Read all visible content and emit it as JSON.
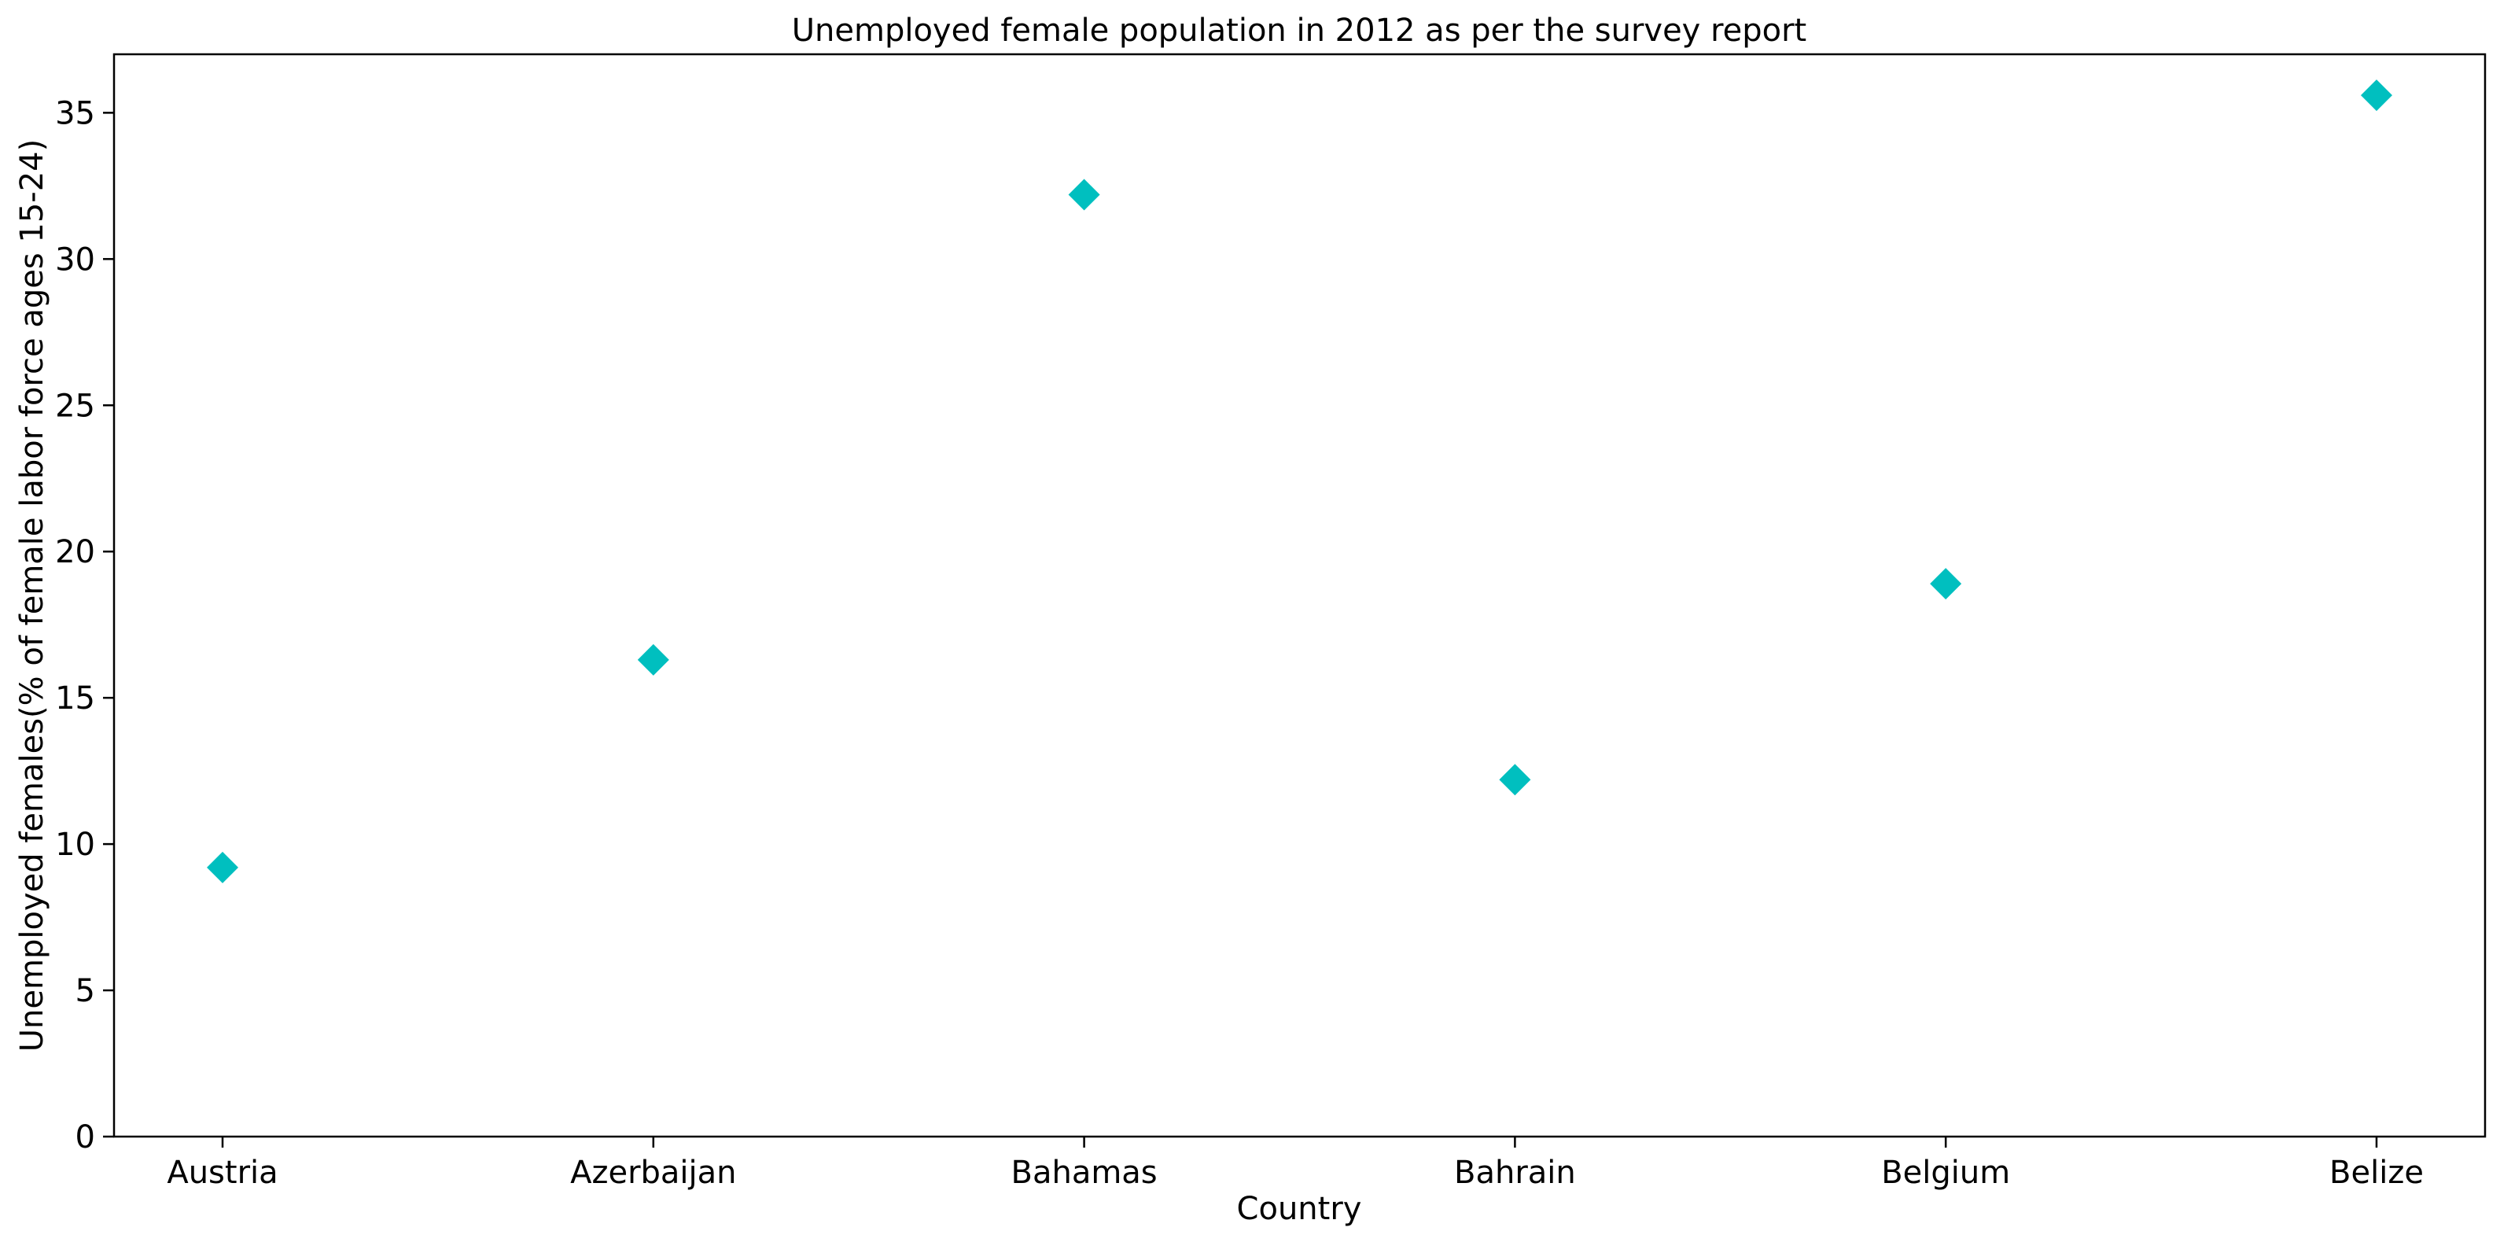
{
  "chart_data": {
    "type": "scatter",
    "title": "Unemployed female population in 2012 as per the survey report",
    "xlabel": "Country",
    "ylabel": "Unemployed females(% of female labor force ages 15-24)",
    "categories": [
      "Austria",
      "Azerbaijan",
      "Bahamas",
      "Bahrain",
      "Belgium",
      "Belize"
    ],
    "series": [
      {
        "values": [
          9.2,
          16.3,
          32.2,
          12.2,
          18.9,
          35.6
        ],
        "color": "#00bfbf",
        "marker": "diamond"
      }
    ],
    "ylim": [
      0,
      37
    ],
    "yticks": [
      0,
      5,
      10,
      15,
      20,
      25,
      30,
      35
    ],
    "grid": false,
    "legend": "none"
  }
}
